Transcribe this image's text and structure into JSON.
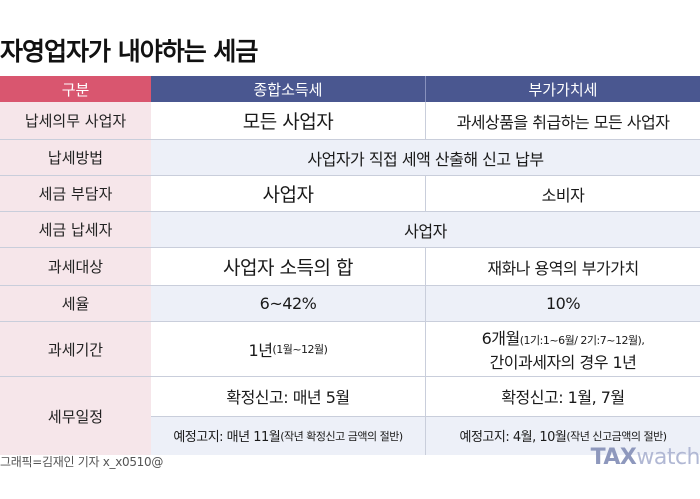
{
  "title": "자영업자가 내야하는 세금",
  "header": {
    "col0": "구분",
    "col1": "종합소득세",
    "col2": "부가가치세"
  },
  "rows": {
    "r1": {
      "label": "납세의무 사업자",
      "v1": "모든 사업자",
      "v2": "과세상품을 취급하는 모든 사업자"
    },
    "r2": {
      "label": "납세방법",
      "v": "사업자가 직접 세액 산출해 신고 납부"
    },
    "r3": {
      "label": "세금 부담자",
      "v1": "사업자",
      "v2": "소비자"
    },
    "r4": {
      "label": "세금 납세자",
      "v": "사업자"
    },
    "r5": {
      "label": "과세대상",
      "v1": "사업자 소득의 합",
      "v2": "재화나 용역의 부가가치"
    },
    "r6": {
      "label": "세율",
      "v1": "6~42%",
      "v2": "10%"
    },
    "r7": {
      "label": "과세기간",
      "v1_main": "1년",
      "v1_sub": "(1월~12월)",
      "v2_main": "6개월",
      "v2_sub": "(1기:1~6월/ 2기:7~12월),",
      "v2_line2": "간이과세자의 경우 1년"
    },
    "r8": {
      "label": "세무일정",
      "v1_top": "확정신고: 매년 5월",
      "v1_bottom_main": "예정고지: 매년 11월",
      "v1_bottom_sub": "(작년 확정신고 금액의 절반)",
      "v2_top": "확정신고: 1월, 7월",
      "v2_bottom_main": "예정고지: 4월, 10월",
      "v2_bottom_sub": "(작년 신고금액의 절반)"
    }
  },
  "credit": "그래픽=김재인 기자 x_x0510@",
  "logo": {
    "part1": "TAX",
    "part2": "watch"
  },
  "colors": {
    "header_pink": "#d9566f",
    "header_navy": "#4a5790",
    "label_bg": "#f6e6ea",
    "alt_bg": "#edf0f8"
  }
}
